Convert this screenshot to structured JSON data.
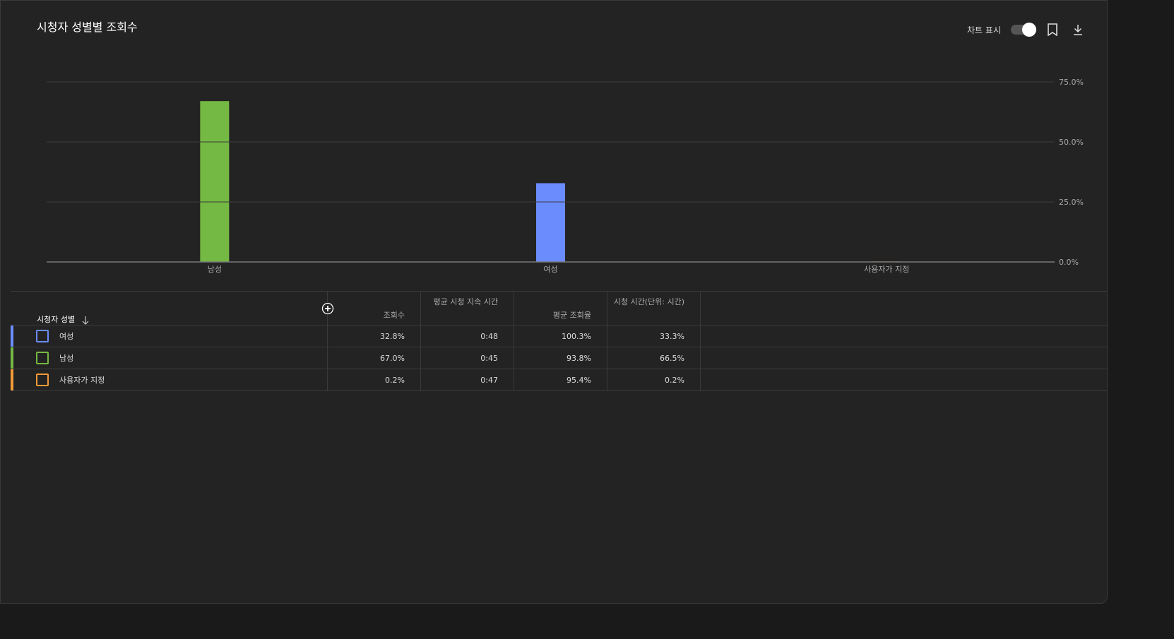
{
  "header": {
    "title": "시청자 성별별 조회수",
    "chart_toggle_label": "차트 표시",
    "chart_toggle_on": true
  },
  "icons": {
    "bookmark": "bookmark-icon",
    "download": "download-icon",
    "add_column": "plus-circle-icon",
    "sort": "arrow-down-icon"
  },
  "colors": {
    "female": "#6b8cfd",
    "male": "#74b943",
    "custom": "#f29a38"
  },
  "chart_data": {
    "type": "bar",
    "title": "시청자 성별별 조회수",
    "categories": [
      "남성",
      "여성",
      "사용자가 지정"
    ],
    "values": [
      67.0,
      32.8,
      0.2
    ],
    "colors": [
      "#74b943",
      "#6b8cfd",
      "#f29a38"
    ],
    "ylim": [
      0,
      75
    ],
    "yticks": [
      0,
      25,
      50,
      75
    ],
    "ytick_labels": [
      "0.0%",
      "25.0%",
      "50.0%",
      "75.0%"
    ],
    "grid": true,
    "xlabel": "",
    "ylabel": ""
  },
  "table": {
    "columns": [
      "시청자 성별",
      "조회수",
      "평균 시청 지속 시간",
      "평균 조회율",
      "시청 시간(단위: 시간)"
    ],
    "rows": [
      {
        "label": "여성",
        "color": "#6b8cfd",
        "views": "32.8%",
        "avg_duration": "0:48",
        "avg_pct": "100.3%",
        "watch_time": "33.3%"
      },
      {
        "label": "남성",
        "color": "#74b943",
        "views": "67.0%",
        "avg_duration": "0:45",
        "avg_pct": "93.8%",
        "watch_time": "66.5%"
      },
      {
        "label": "사용자가 지정",
        "color": "#f29a38",
        "views": "0.2%",
        "avg_duration": "0:47",
        "avg_pct": "95.4%",
        "watch_time": "0.2%"
      }
    ]
  }
}
